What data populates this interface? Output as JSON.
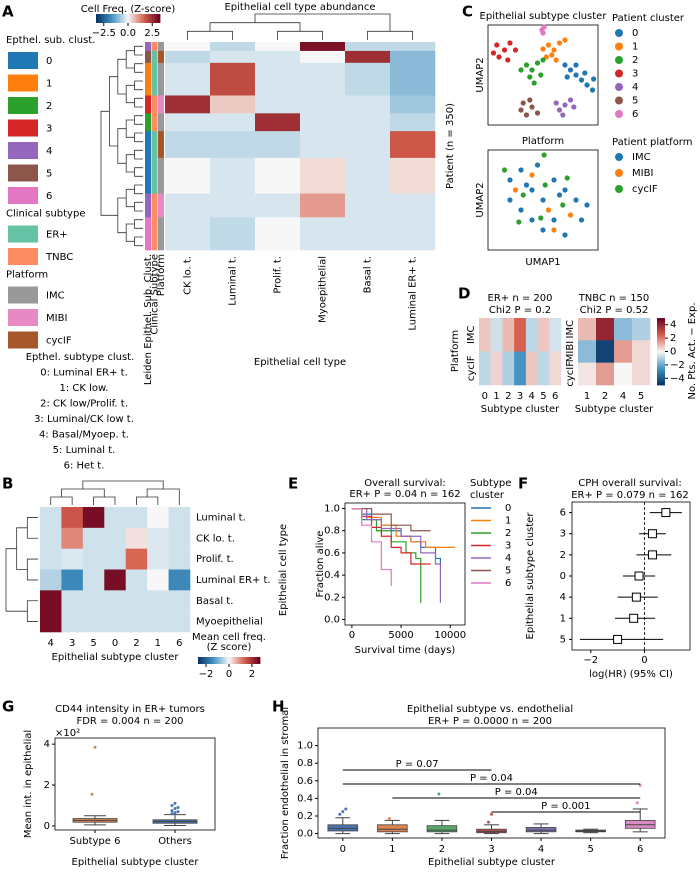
{
  "chart_data": [
    {
      "type": "heatmap",
      "panel": "A",
      "title": "Epithelial cell type abundance",
      "columns": [
        "CK lo. t.",
        "Luminal t.",
        "Prolif. t.",
        "Myoepithelial",
        "Basal t.",
        "Luminal ER+ t."
      ],
      "xlabel": "Epithelial cell type",
      "ylabel": "Patient (n = 350)",
      "clim": [
        -3.3,
        3.3
      ],
      "colorbar": {
        "label": "Cell Freq. (Z-score)",
        "ticks": [
          {
            "value": -2.5,
            "label": "−2.5"
          },
          {
            "value": 0,
            "label": "0.0"
          },
          2.5
        ]
      },
      "annotation_labels": [
        "Leiden Epithel. Sub. Clust.",
        "Clinical Subtype",
        "Platform"
      ],
      "row_counts": [
        15,
        20,
        55,
        30,
        30,
        45,
        60,
        40,
        55
      ],
      "row_cluster": [
        4,
        5,
        1,
        3,
        2,
        0,
        0,
        4,
        6
      ],
      "row_subtype": [
        1,
        0,
        0,
        1,
        1,
        0,
        0,
        1,
        1
      ],
      "row_platform": [
        0,
        2,
        0,
        1,
        0,
        2,
        0,
        1,
        0
      ],
      "values": [
        [
          0,
          -0.5,
          0,
          3,
          -0.5,
          -0.5
        ],
        [
          -0.5,
          -0.3,
          -0.3,
          0,
          2.5,
          -1
        ],
        [
          -0.3,
          2,
          -0.3,
          -0.3,
          -0.5,
          -1
        ],
        [
          2.5,
          0.5,
          -0.3,
          -0.3,
          -0.3,
          -0.8
        ],
        [
          -0.3,
          -0.3,
          2.5,
          -0.3,
          -0.3,
          -0.5
        ],
        [
          -0.5,
          -0.5,
          -0.5,
          -0.3,
          -0.3,
          1.8
        ],
        [
          0,
          -0.3,
          0,
          0.3,
          -0.3,
          0.3
        ],
        [
          -0.3,
          -0.3,
          -0.3,
          1,
          -0.3,
          -0.3
        ],
        [
          -0.3,
          -0.5,
          0,
          -0.3,
          -0.3,
          -0.3
        ]
      ],
      "legends": [
        {
          "title": "Epthel. sub. clust.",
          "labels": [
            "0",
            "1",
            "2",
            "3",
            "4",
            "5",
            "6"
          ],
          "colors": [
            "#1f77b4",
            "#ff7f0e",
            "#2ca02c",
            "#d62728",
            "#9467bd",
            "#8c564b",
            "#e377c2"
          ]
        },
        {
          "title": "Clinical subtype",
          "labels": [
            "ER+",
            "TNBC"
          ],
          "colors": [
            "#66c2a5",
            "#fc8d62"
          ]
        },
        {
          "title": "Platform",
          "labels": [
            "IMC",
            "MIBI",
            "cycIF"
          ],
          "colors": [
            "#999999",
            "#e78ac3",
            "#a65628"
          ]
        }
      ],
      "subtype_names": {
        "title": "Epthel. subtype clust.",
        "labels": [
          "0: Luminal ER+ t.",
          "1: CK low.",
          "2: CK low/Prolif. t.",
          "3: Luminal/CK low t.",
          "4: Basal/Myoep. t.",
          "5: Luminal t.",
          "6: Het t."
        ],
        "colors": [
          "#1f1fd0",
          "#e69500",
          "#2ca02c",
          "#d62728",
          "#6a3d9a",
          "#8c4a10",
          "#e377c2"
        ]
      }
    },
    {
      "type": "scatter",
      "panel": "C",
      "title": "Epithelial subtype cluster",
      "ylabel": "UMAP2",
      "xlim": [
        0,
        10
      ],
      "ylim": [
        0,
        10
      ],
      "legend_title": "Patient cluster",
      "series": [
        {
          "name": "0",
          "color": "#1f77b4",
          "x": [
            7,
            7.5,
            8,
            8.5,
            9,
            9.5,
            8,
            8.8,
            9.6,
            7.2
          ],
          "values": [
            6,
            5.5,
            5,
            4.5,
            4,
            3.5,
            6,
            5.2,
            4.6,
            4.8
          ]
        },
        {
          "name": "1",
          "color": "#ff7f0e",
          "x": [
            5.5,
            6,
            5.8,
            6.5,
            5,
            6.2,
            7,
            5.3
          ],
          "values": [
            8,
            7.5,
            7,
            8.2,
            7.6,
            6.5,
            8.5,
            6.8
          ]
        },
        {
          "name": "2",
          "color": "#2ca02c",
          "x": [
            3.5,
            4,
            4.5,
            3.8,
            4.8,
            3,
            4.2,
            5
          ],
          "values": [
            6,
            5.5,
            6.2,
            4.8,
            5,
            5.5,
            4.2,
            6.5
          ]
        },
        {
          "name": "3",
          "color": "#d62728",
          "x": [
            0.8,
            1.5,
            1,
            2,
            1.8,
            0.5,
            2.5
          ],
          "values": [
            8,
            7.5,
            6.8,
            8.2,
            6.5,
            7.2,
            7.5
          ]
        },
        {
          "name": "4",
          "color": "#9467bd",
          "x": [
            6.5,
            7,
            6.8,
            7.5,
            6.2,
            7.8
          ],
          "values": [
            1.5,
            2,
            1,
            2.5,
            2.2,
            1.8
          ]
        },
        {
          "name": "5",
          "color": "#8c564b",
          "x": [
            3,
            3.5,
            4,
            3.2,
            4.5,
            3.8
          ],
          "values": [
            1.5,
            1,
            1.8,
            2.2,
            1.2,
            2.5
          ]
        },
        {
          "name": "6",
          "color": "#e377c2",
          "x": [
            4.9,
            5.1,
            5
          ],
          "values": [
            9.5,
            9.8,
            9.2
          ]
        }
      ]
    },
    {
      "type": "scatter",
      "panel": "",
      "title": "Platform",
      "xlabel": "UMAP1",
      "ylabel": "UMAP2",
      "xlim": [
        0,
        10
      ],
      "ylim": [
        0,
        10
      ],
      "legend_title": "Patient platform",
      "series": [
        {
          "name": "IMC",
          "color": "#1f77b4",
          "x": [
            2,
            3,
            4,
            5,
            6,
            7,
            8,
            3,
            4,
            6,
            5,
            7,
            2,
            4.5,
            6.5,
            8.5,
            9,
            3.5
          ],
          "values": [
            7,
            8,
            6,
            5,
            7,
            6,
            5,
            4,
            3,
            3,
            2,
            1.5,
            5,
            8.5,
            5.5,
            3,
            4.5,
            6.5
          ]
        },
        {
          "name": "MIBI",
          "color": "#ff7f0e",
          "x": [
            2.5,
            5.5,
            7.5,
            4,
            6
          ],
          "values": [
            6,
            4,
            3.5,
            7.5,
            2
          ]
        },
        {
          "name": "cycIF",
          "color": "#2ca02c",
          "x": [
            1.5,
            3.2,
            5.2,
            6.8,
            4.8,
            7.2,
            2.8,
            5.1
          ],
          "values": [
            8,
            5.5,
            6.5,
            4.5,
            3.2,
            7.2,
            2.8,
            9.5
          ]
        }
      ]
    },
    {
      "type": "heatmap",
      "panel": "D",
      "title": [
        "ER+ n = 200",
        "Chi2 P = 0.2"
      ],
      "columns": [
        "0",
        "1",
        "2",
        "3",
        "4",
        "5",
        "6"
      ],
      "rows": [
        "IMC",
        "cycIF"
      ],
      "xlabel": "Subtype cluster",
      "ylabel": "Platform",
      "clim": [
        -5,
        5
      ],
      "values": [
        [
          0.8,
          -0.6,
          1,
          2.5,
          -0.8,
          0.8,
          -0.5
        ],
        [
          -0.8,
          0.6,
          -1,
          -2.5,
          0.8,
          -0.8,
          0.5
        ]
      ]
    },
    {
      "type": "heatmap",
      "panel": "",
      "title": [
        "TNBC n = 150",
        "Chi2 P = 0.52"
      ],
      "columns": [
        "1",
        "2",
        "4",
        "5"
      ],
      "rows": [
        "IMC",
        "MIBI",
        "cycIF"
      ],
      "xlabel": "Subtype cluster",
      "clim": [
        -5,
        5
      ],
      "values": [
        [
          1,
          4,
          -1.5,
          -1
        ],
        [
          -1.5,
          -4.5,
          1.5,
          0.5
        ],
        [
          0.3,
          1.5,
          0,
          0.5
        ]
      ],
      "colorbar": {
        "label": "No. Pts. Act. − Exp.",
        "ticks": [
          4,
          2,
          0,
          {
            "value": -2,
            "label": "−2"
          },
          {
            "value": -4,
            "label": "−4"
          }
        ]
      }
    },
    {
      "type": "heatmap",
      "panel": "B",
      "columns": [
        "4",
        "3",
        "5",
        "0",
        "2",
        "1",
        "6"
      ],
      "rows": [
        "Luminal t.",
        "CK lo. t.",
        "Prolif. t.",
        "Luminal ER+ t.",
        "Basal t.",
        "Myoepithelial"
      ],
      "xlabel": "Epithelial subtype cluster",
      "ylabel": "Epithelial cell type",
      "clim": [
        -2.7,
        2.7
      ],
      "values": [
        [
          -0.3,
          1.5,
          2.5,
          -0.3,
          -0.3,
          0,
          -0.3
        ],
        [
          -0.3,
          1,
          -0.3,
          -0.3,
          0.2,
          -0.2,
          -0.3
        ],
        [
          -0.3,
          -0.2,
          -0.3,
          -0.3,
          1.3,
          -0.2,
          -0.3
        ],
        [
          -0.5,
          -1.5,
          -0.3,
          2.5,
          -0.3,
          0,
          -1.5
        ],
        [
          2.5,
          -0.3,
          -0.3,
          -0.3,
          -0.3,
          -0.3,
          -0.3
        ],
        [
          2.5,
          -0.3,
          -0.3,
          -0.3,
          -0.3,
          -0.3,
          -0.3
        ]
      ],
      "colorbar": {
        "label": [
          "Mean cell freq.",
          "(Z score)"
        ],
        "ticks": [
          {
            "value": -2,
            "label": "−2"
          },
          0,
          2
        ]
      }
    },
    {
      "type": "line",
      "panel": "E",
      "title": [
        "Overall survival:",
        "ER+ P = 0.04 n = 162"
      ],
      "xlabel": "Survival time (days)",
      "ylabel": "Fraction alive",
      "xlim": [
        -700,
        11500
      ],
      "ylim": [
        -0.05,
        1.05
      ],
      "xticks": [
        0,
        5000,
        10000
      ],
      "yticks": [
        {
          "value": 0,
          "label": "0.0"
        },
        0.2,
        0.4,
        0.6,
        0.8,
        {
          "value": 1,
          "label": "1.0"
        }
      ],
      "legend_title": [
        "Subtype",
        "cluster"
      ],
      "series": [
        {
          "name": "0",
          "color": "#1f77b4",
          "x": [
            0,
            1000,
            2000,
            3000,
            4000,
            5000,
            6000,
            7000,
            8500,
            9000
          ],
          "values": [
            1,
            0.95,
            0.9,
            0.85,
            0.8,
            0.75,
            0.7,
            0.65,
            0.55,
            0.5
          ]
        },
        {
          "name": "1",
          "color": "#ff7f0e",
          "x": [
            0,
            1500,
            3000,
            4500,
            6000,
            7500,
            10500
          ],
          "values": [
            1,
            0.92,
            0.85,
            0.75,
            0.7,
            0.65,
            0.65
          ]
        },
        {
          "name": "2",
          "color": "#2ca02c",
          "x": [
            0,
            1000,
            2500,
            4000,
            5500,
            6500,
            7000
          ],
          "values": [
            1,
            0.9,
            0.8,
            0.7,
            0.6,
            0.55,
            0.15
          ]
        },
        {
          "name": "3",
          "color": "#d62728",
          "x": [
            0,
            1000,
            2000,
            3000,
            4000,
            5000,
            6000,
            8000
          ],
          "values": [
            1,
            0.93,
            0.83,
            0.75,
            0.65,
            0.6,
            0.5,
            0.5
          ]
        },
        {
          "name": "4",
          "color": "#9467bd",
          "x": [
            0,
            1500,
            3000,
            5000,
            7000,
            8500,
            9000
          ],
          "values": [
            1,
            0.9,
            0.82,
            0.75,
            0.6,
            0.5,
            0.15
          ]
        },
        {
          "name": "5",
          "color": "#8c564b",
          "x": [
            0,
            2000,
            4000,
            6000,
            8000
          ],
          "values": [
            1,
            0.95,
            0.85,
            0.8,
            0.8
          ]
        },
        {
          "name": "6",
          "color": "#e377c2",
          "x": [
            0,
            1000,
            2000,
            3000,
            4000
          ],
          "values": [
            1,
            0.85,
            0.7,
            0.45,
            0.3
          ]
        }
      ]
    },
    {
      "type": "forest",
      "panel": "F",
      "title": [
        "CPH overall survival:",
        "ER+ P = 0.079 n = 162"
      ],
      "xlabel": "log(HR) (95% CI)",
      "ylabel": "Epithelial subtype cluster",
      "categories": [
        "6",
        "3",
        "2",
        "0",
        "4",
        "1",
        "5"
      ],
      "values": [
        0.8,
        0.3,
        0.3,
        -0.2,
        -0.3,
        -0.4,
        -1.0
      ],
      "ci_low": [
        0.2,
        -0.2,
        -0.3,
        -0.8,
        -1.0,
        -1.1,
        -2.4
      ],
      "ci_high": [
        1.4,
        0.8,
        1.0,
        0.4,
        0.5,
        0.4,
        0.7
      ],
      "xlim": [
        -2.7,
        1.7
      ],
      "xticks": [
        {
          "value": -2,
          "label": "−2"
        },
        0
      ]
    },
    {
      "type": "box",
      "panel": "G",
      "title": [
        "CD44 intensity in ER+ tumors",
        "FDR = 0.004 n = 200"
      ],
      "xlabel": "Epithelial subtype cluster",
      "ylabel": "Mean int. in epithelial",
      "scale_label": "×10²",
      "categories": [
        "Subtype 6",
        "Others"
      ],
      "colors": [
        "#dd8452",
        "#4c72b0"
      ],
      "whislo": [
        0.05,
        0.02
      ],
      "q1": [
        0.18,
        0.13
      ],
      "med": [
        0.27,
        0.22
      ],
      "q3": [
        0.36,
        0.3
      ],
      "whishi": [
        0.5,
        0.55
      ],
      "fliers": [
        [
          1.55,
          3.85
        ],
        [
          0.6,
          0.65,
          0.7,
          0.75,
          0.85,
          0.9,
          1.0,
          1.1
        ]
      ],
      "ylim": [
        -0.2,
        4.3
      ],
      "yticks": [
        0,
        2,
        4
      ]
    },
    {
      "type": "box",
      "panel": "H",
      "title": [
        "Epithelial subtype vs. endothelial",
        "ER+ P = 0.0000 n = 200"
      ],
      "xlabel": "Epithelial subtype cluster",
      "ylabel": "Fraction endothelial in stromal",
      "categories": [
        "0",
        "1",
        "2",
        "3",
        "4",
        "5",
        "6"
      ],
      "colors": [
        "#4c72b0",
        "#dd8452",
        "#55a868",
        "#c44e52",
        "#8172b3",
        "#937860",
        "#da8bc3"
      ],
      "whislo": [
        0,
        0,
        0,
        0,
        0,
        0.01,
        0.02
      ],
      "q1": [
        0.03,
        0.02,
        0.02,
        0.01,
        0.02,
        0.02,
        0.06
      ],
      "med": [
        0.06,
        0.05,
        0.04,
        0.025,
        0.04,
        0.03,
        0.1
      ],
      "q3": [
        0.1,
        0.1,
        0.09,
        0.05,
        0.07,
        0.04,
        0.15
      ],
      "whishi": [
        0.18,
        0.15,
        0.15,
        0.1,
        0.11,
        0.05,
        0.28
      ],
      "fliers": [
        [
          0.22,
          0.25,
          0.28
        ],
        [
          0.17
        ],
        [
          0.45
        ],
        [
          0.13,
          0.22
        ],
        [],
        [],
        [
          0.35,
          0.55
        ]
      ],
      "ylim": [
        -0.05,
        1.2
      ],
      "yticks": [
        {
          "value": 0,
          "label": "0.0"
        },
        0.2,
        0.4,
        0.6,
        0.8,
        {
          "value": 1,
          "label": "1.0"
        }
      ],
      "annotations": [
        {
          "label": "P = 0.07",
          "from": 0,
          "to": 3
        },
        {
          "label": "P = 0.04",
          "from": 0,
          "to": 6
        },
        {
          "label": "P = 0.04",
          "from": 1,
          "to": 6
        },
        {
          "label": "P = 0.001",
          "from": 3,
          "to": 6
        }
      ]
    }
  ]
}
